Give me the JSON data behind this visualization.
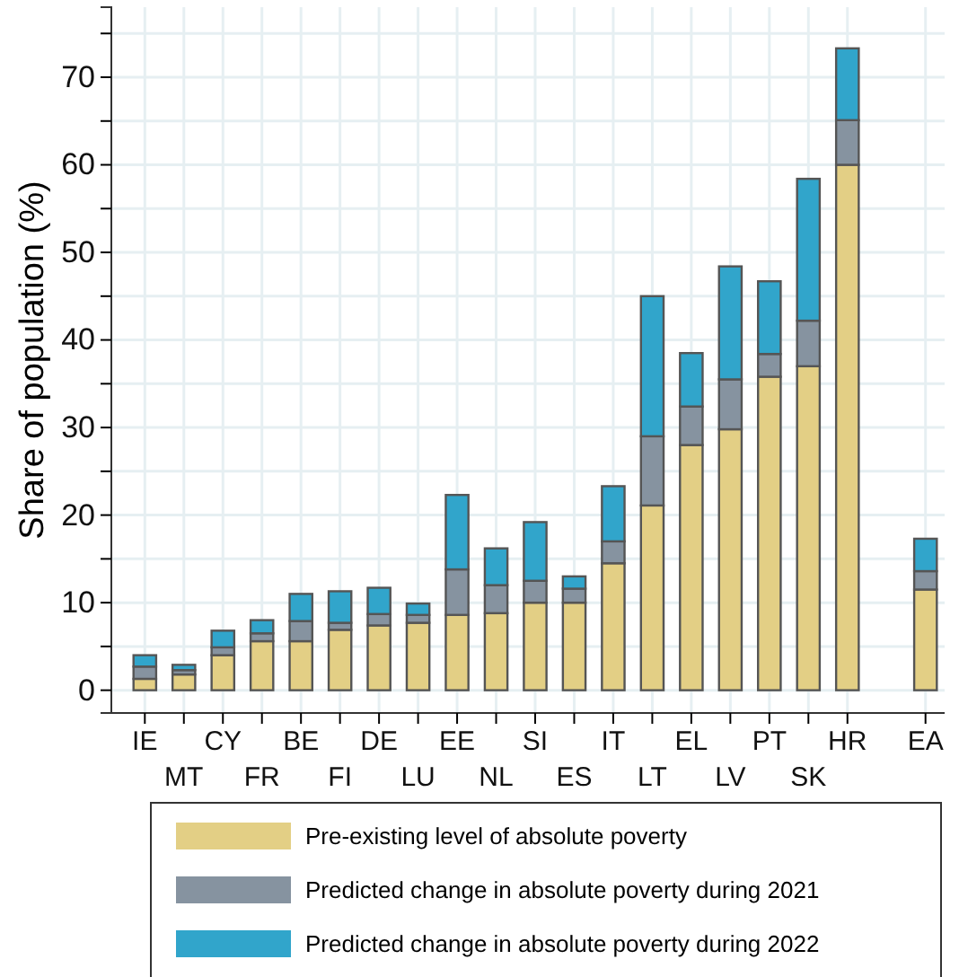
{
  "chart_data": {
    "type": "bar",
    "stacked": true,
    "ylabel": "Share of population (%)",
    "categories": [
      "IE",
      "MT",
      "CY",
      "FR",
      "BE",
      "FI",
      "DE",
      "LU",
      "EE",
      "NL",
      "SI",
      "ES",
      "IT",
      "LT",
      "EL",
      "LV",
      "PT",
      "SK",
      "HR",
      null,
      "EA"
    ],
    "series": [
      {
        "name": "Pre-existing level of absolute poverty",
        "color": "#e3cf85",
        "values": [
          1.3,
          1.8,
          4.0,
          5.6,
          5.6,
          6.9,
          7.4,
          7.7,
          8.6,
          8.8,
          10.0,
          10.0,
          14.5,
          21.1,
          28.0,
          29.8,
          35.8,
          37.0,
          60.0,
          null,
          11.5
        ]
      },
      {
        "name": "Predicted change in absolute poverty during 2021",
        "color": "#8693a0",
        "values": [
          1.4,
          0.5,
          0.9,
          0.9,
          2.3,
          0.8,
          1.3,
          0.9,
          5.2,
          3.2,
          2.5,
          1.6,
          2.5,
          7.9,
          4.4,
          5.7,
          2.6,
          5.2,
          5.1,
          null,
          2.1
        ]
      },
      {
        "name": "Predicted change in absolute poverty during 2022",
        "color": "#31a5cb",
        "values": [
          1.3,
          0.6,
          1.9,
          1.5,
          3.1,
          3.6,
          3.0,
          1.3,
          8.5,
          4.2,
          6.7,
          1.4,
          6.3,
          16.0,
          6.1,
          12.9,
          8.3,
          16.2,
          8.2,
          null,
          3.7
        ]
      }
    ],
    "ylim": [
      -2.6,
      78
    ],
    "yticks": [
      0,
      {
        "value": 5,
        "label": null
      },
      10,
      {
        "value": 15,
        "label": null
      },
      20,
      {
        "value": 25,
        "label": null
      },
      30,
      {
        "value": 35,
        "label": null
      },
      40,
      {
        "value": 45,
        "label": null
      },
      50,
      {
        "value": 55,
        "label": null
      },
      60,
      {
        "value": 65,
        "label": null
      },
      70,
      {
        "value": 75,
        "label": null
      }
    ],
    "grid": true,
    "legend": "bottom"
  }
}
